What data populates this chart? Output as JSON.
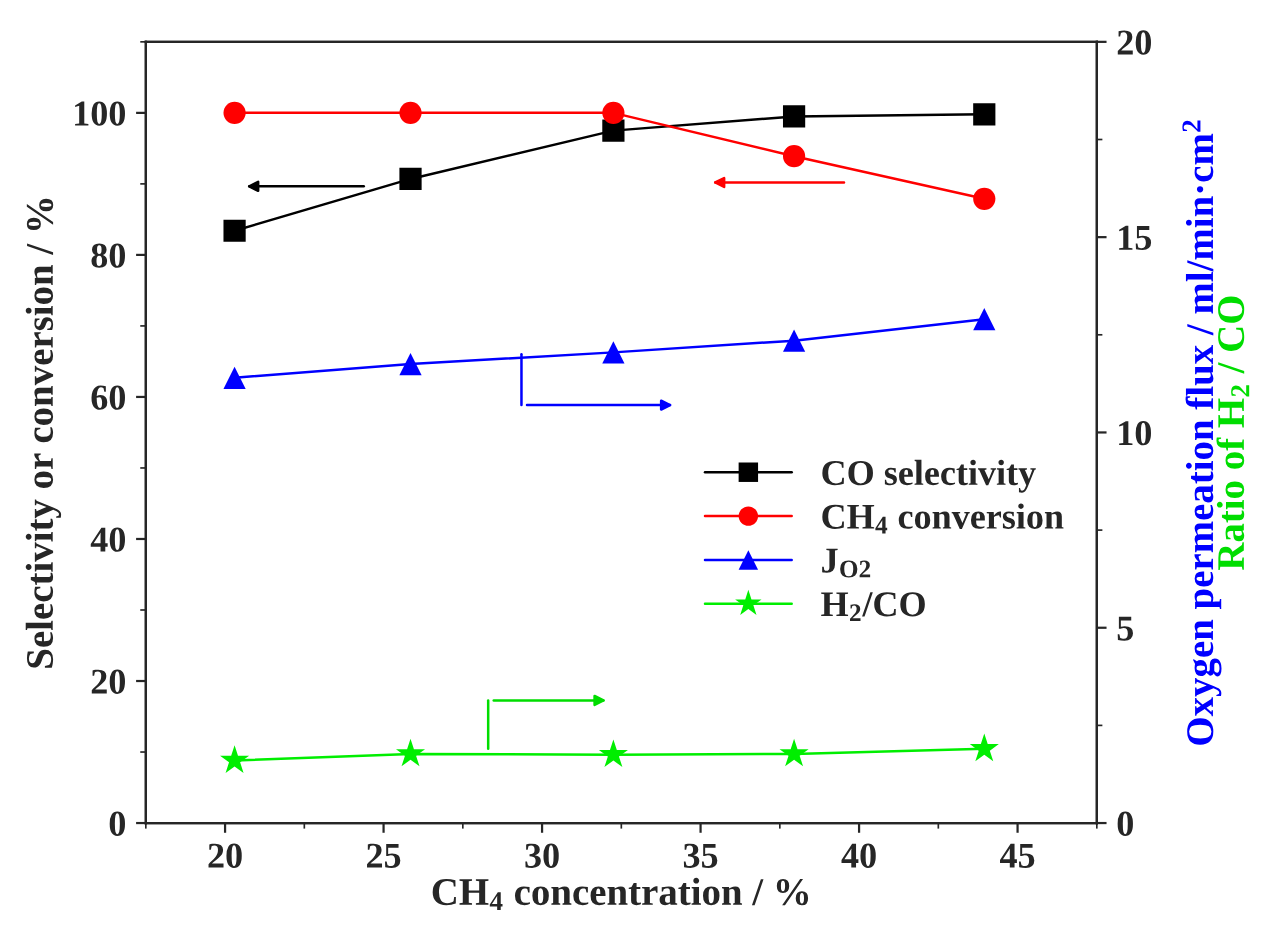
{
  "chart_data": {
    "type": "line",
    "xlabel": "CH$_{4}$ concentration / %",
    "ylabel": "Selectivity or conversion / %",
    "y2label": "Oxygen permeation flux / ml/min·cm$^{2}$",
    "annotations": [
      "Ratio of H$_{2}$ / CO"
    ],
    "x": [
      20.3,
      25.85,
      32.25,
      37.95,
      43.95
    ],
    "series": [
      {
        "name": "CO selectivity",
        "color": "#000000",
        "marker": "square",
        "values": [
          83.4,
          90.7,
          97.5,
          99.5,
          99.8
        ]
      },
      {
        "name": "CH$_{4}$ conversion",
        "color": "#ff0000",
        "marker": "circle",
        "values": [
          100,
          100,
          100,
          93.9,
          87.9
        ]
      },
      {
        "name": "J$_{O2}$",
        "color": "#0000ff",
        "marker": "triangle",
        "axis": "y2",
        "values": [
          11.4,
          11.75,
          12.05,
          12.35,
          12.9
        ]
      },
      {
        "name": "H$_{2}$/CO",
        "color": "#00ee00",
        "marker": "star",
        "axis": "y2",
        "values": [
          1.6,
          1.77,
          1.75,
          1.77,
          1.9
        ]
      }
    ],
    "xlim": [
      17.5,
      47.5
    ],
    "xticks": [
      20,
      25,
      30,
      35,
      40,
      45
    ],
    "ylim": [
      0,
      110
    ],
    "yticks": [
      0,
      20,
      40,
      60,
      80,
      100
    ],
    "y2lim": [
      0,
      20
    ],
    "y2ticks": [
      0,
      5,
      10,
      15,
      20
    ],
    "legend": "right",
    "grid": false,
    "line_style": "solid"
  }
}
